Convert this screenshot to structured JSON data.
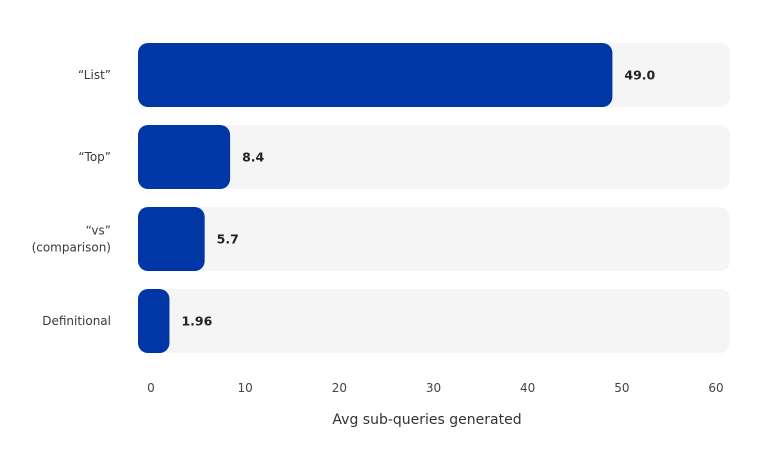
{
  "chart_data": {
    "type": "bar",
    "orientation": "horizontal",
    "categories": [
      [
        "“List”"
      ],
      [
        "“Top”"
      ],
      [
        "“vs”",
        "(comparison)"
      ],
      [
        "Definitional"
      ]
    ],
    "values": [
      49.0,
      8.4,
      5.7,
      1.96
    ],
    "value_labels": [
      "49.0",
      "8.4",
      "5.7",
      "1.96"
    ],
    "xlim": [
      0,
      60
    ],
    "xticks": [
      0,
      10,
      20,
      30,
      40,
      50,
      60
    ],
    "xlabel": "Avg sub-queries generated",
    "title": "",
    "grid": false,
    "colors": {
      "bar": "#0036a6",
      "track": "#f5f5f5"
    }
  }
}
